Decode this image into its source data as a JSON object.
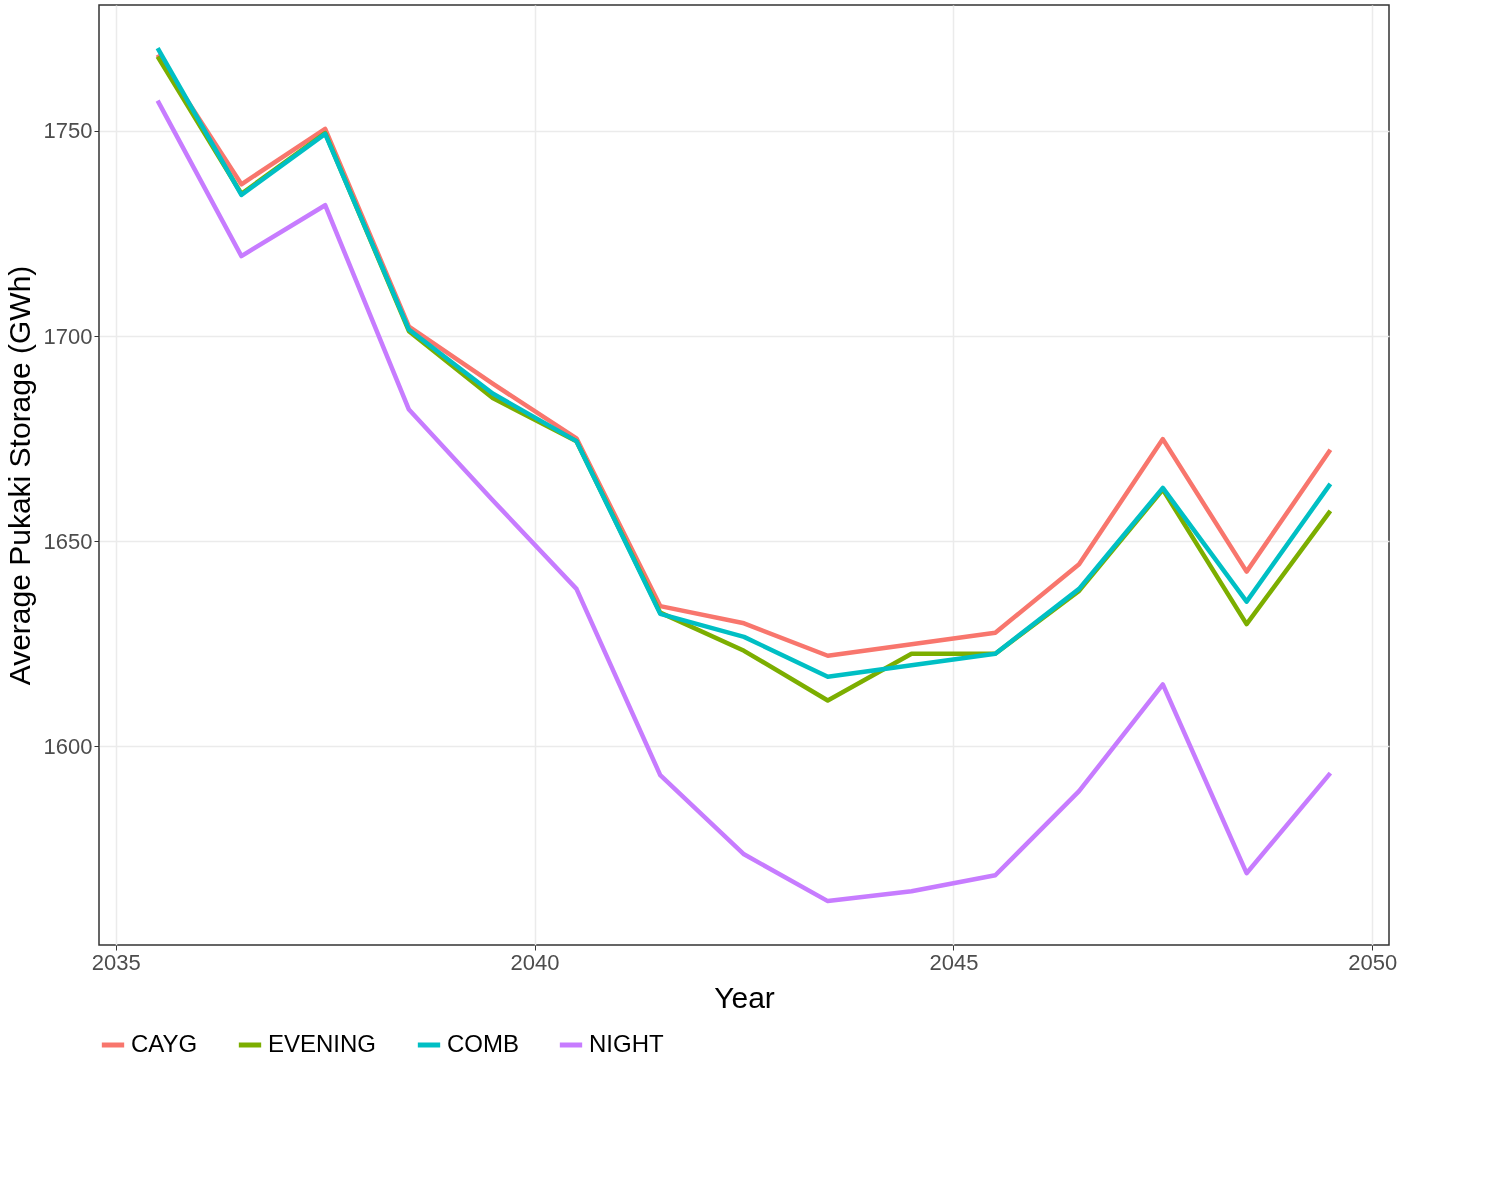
{
  "chart_data": {
    "type": "line",
    "xlabel": "Year",
    "ylabel": "Average Pukaki Storage (GWh)",
    "x": [
      2035.5,
      2036.5,
      2037.5,
      2038.5,
      2039.5,
      2040.5,
      2041.5,
      2042.5,
      2043.5,
      2044.5,
      2045.5,
      2046.5,
      2047.5,
      2048.5,
      2049.5
    ],
    "series": [
      {
        "name": "CAYG",
        "color": "#f8766d",
        "values": [
          1768.6,
          1737.0,
          1750.5,
          1702.3,
          1688.4,
          1675.1,
          1634.2,
          1630.0,
          1622.1,
          1624.9,
          1627.7,
          1644.4,
          1674.9,
          1642.6,
          1672.3
        ]
      },
      {
        "name": "EVENING",
        "color": "#7cae00",
        "values": [
          1768.1,
          1734.7,
          1749.5,
          1701.2,
          1684.9,
          1674.4,
          1632.6,
          1623.3,
          1611.2,
          1622.6,
          1622.6,
          1637.9,
          1662.6,
          1629.8,
          1657.4
        ]
      },
      {
        "name": "COMB",
        "color": "#00bfc4",
        "values": [
          1770.2,
          1734.4,
          1749.3,
          1701.6,
          1686.0,
          1674.4,
          1632.3,
          1626.7,
          1617.0,
          1619.8,
          1622.6,
          1638.4,
          1663.0,
          1635.3,
          1664.0
        ]
      },
      {
        "name": "NIGHT",
        "color": "#c77cff",
        "values": [
          1757.4,
          1719.5,
          1731.9,
          1682.1,
          1660.0,
          1638.4,
          1593.0,
          1573.7,
          1562.3,
          1564.7,
          1568.6,
          1589.1,
          1615.1,
          1569.1,
          1593.5
        ]
      }
    ],
    "xlim": [
      2034.8,
      2050.2
    ],
    "xticks": [
      2035,
      2040,
      2045,
      2050
    ],
    "ylim": [
      1551.6,
      1780.7
    ],
    "yticks": [
      1600,
      1650,
      1700,
      1750
    ],
    "grid": true,
    "legend": "bottom",
    "marker": "none",
    "line_style": "solid"
  }
}
